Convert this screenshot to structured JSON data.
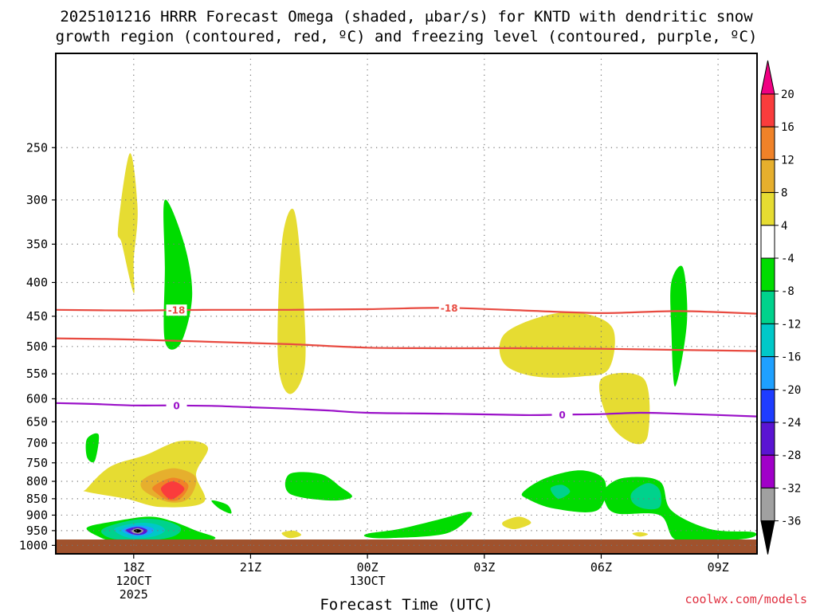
{
  "chart_data": {
    "type": "time-height cross section",
    "title_line1": "2025101216 HRRR Forecast Omega (shaded, μbar/s) for KNTD with dendritic snow",
    "title_line2": "growth region (contoured, red, ºC) and freezing level (contoured, purple, ºC)",
    "xlabel": "Forecast Time (UTC)",
    "credit": "coolwx.com/models",
    "y_axis": {
      "unit": "hPa",
      "reversed": true,
      "range": [
        1030,
        180
      ],
      "ticks": [
        250,
        300,
        350,
        400,
        450,
        500,
        550,
        600,
        650,
        700,
        750,
        800,
        850,
        900,
        950,
        1000
      ]
    },
    "x_axis": {
      "unit": "hours since 12Z 12 Oct 2025",
      "range": [
        4,
        22
      ],
      "ticks": [
        {
          "h": 6,
          "lines": [
            "18Z",
            "12OCT",
            "2025"
          ]
        },
        {
          "h": 9,
          "lines": [
            "21Z"
          ]
        },
        {
          "h": 12,
          "lines": [
            "00Z",
            "13OCT"
          ]
        },
        {
          "h": 15,
          "lines": [
            "03Z"
          ]
        },
        {
          "h": 18,
          "lines": [
            "06Z"
          ]
        },
        {
          "h": 21,
          "lines": [
            "09Z"
          ]
        }
      ]
    },
    "colorbar": {
      "levels": [
        -36,
        -32,
        -28,
        -24,
        -20,
        -16,
        -12,
        -8,
        -4,
        4,
        8,
        12,
        16,
        20
      ],
      "labels": [
        "20",
        "16",
        "12",
        "8",
        "4",
        "-4",
        "-8",
        "-12",
        "-16",
        "-20",
        "-24",
        "-28",
        "-32",
        "-36"
      ],
      "colors": [
        "#000000",
        "#a0a0a0",
        "#a000c8",
        "#5a14d2",
        "#1e3cff",
        "#1ea0ff",
        "#00c8c8",
        "#00d28c",
        "#00dc00",
        "#ffffff",
        "#e6dc32",
        "#e6af2d",
        "#f08228",
        "#fa3c3c",
        "#f00082"
      ],
      "color_meaning": [
        "< -36",
        "-36..-32",
        "-32..-28",
        "-28..-24",
        "-24..-20",
        "-20..-16",
        "-16..-12",
        "-12..-8",
        "-8..-4",
        "-4..4",
        "4..8",
        "8..12",
        "12..16",
        "16..20",
        "> 20"
      ]
    },
    "contours": [
      {
        "name": "-18 C isotherm (upper dendritic bound)",
        "color": "#e84a40",
        "value": "-18",
        "label": "-18",
        "label_positions_h": [
          7.1,
          14.1
        ],
        "points": [
          [
            4,
            440
          ],
          [
            6,
            441
          ],
          [
            8,
            440
          ],
          [
            10,
            440
          ],
          [
            12,
            439
          ],
          [
            14,
            437
          ],
          [
            16,
            441
          ],
          [
            18,
            445
          ],
          [
            20,
            442
          ],
          [
            22,
            446
          ]
        ]
      },
      {
        "name": "-12 C isotherm (lower dendritic bound)",
        "color": "#e84a40",
        "value": "-12",
        "label": "",
        "points": [
          [
            4,
            486
          ],
          [
            6,
            488
          ],
          [
            8,
            492
          ],
          [
            10,
            496
          ],
          [
            12,
            502
          ],
          [
            14,
            503
          ],
          [
            16,
            503
          ],
          [
            18,
            504
          ],
          [
            20,
            506
          ],
          [
            22,
            508
          ]
        ]
      },
      {
        "name": "freezing level",
        "color": "#9a10c8",
        "value": "0",
        "label": "0",
        "label_positions_h": [
          7.1,
          17.0
        ],
        "points": [
          [
            4,
            609
          ],
          [
            5,
            611
          ],
          [
            6,
            614
          ],
          [
            7,
            614
          ],
          [
            8,
            615
          ],
          [
            9,
            618
          ],
          [
            10,
            621
          ],
          [
            11,
            625
          ],
          [
            12,
            630
          ],
          [
            14,
            632
          ],
          [
            16,
            635
          ],
          [
            17,
            634
          ],
          [
            18,
            633
          ],
          [
            19,
            630
          ],
          [
            20,
            632
          ],
          [
            22,
            638
          ]
        ]
      }
    ],
    "omega_regions": [
      {
        "level": "4..8",
        "points": [
          [
            5.6,
            330
          ],
          [
            5.9,
            255
          ],
          [
            6.1,
            310
          ],
          [
            6.0,
            370
          ],
          [
            6.0,
            415
          ],
          [
            5.7,
            350
          ]
        ]
      },
      {
        "level": "-8..-4",
        "points": [
          [
            6.8,
            300
          ],
          [
            7.3,
            350
          ],
          [
            7.5,
            420
          ],
          [
            7.2,
            495
          ],
          [
            6.8,
            490
          ],
          [
            6.8,
            380
          ]
        ]
      },
      {
        "level": "4..8",
        "points": [
          [
            9.8,
            350
          ],
          [
            10.1,
            310
          ],
          [
            10.3,
            380
          ],
          [
            10.4,
            530
          ],
          [
            10.0,
            590
          ],
          [
            9.7,
            520
          ]
        ]
      },
      {
        "level": "4..8",
        "points": [
          [
            15.5,
            480
          ],
          [
            16.5,
            450
          ],
          [
            17.5,
            445
          ],
          [
            18.3,
            470
          ],
          [
            18.2,
            540
          ],
          [
            17.5,
            555
          ],
          [
            16.3,
            555
          ],
          [
            15.5,
            530
          ]
        ]
      },
      {
        "level": "4..8",
        "points": [
          [
            18.0,
            560
          ],
          [
            19.1,
            560
          ],
          [
            19.2,
            680
          ],
          [
            18.8,
            700
          ],
          [
            18.2,
            650
          ]
        ]
      },
      {
        "level": "-8..-4",
        "points": [
          [
            19.8,
            400
          ],
          [
            20.1,
            380
          ],
          [
            20.2,
            460
          ],
          [
            19.9,
            575
          ],
          [
            19.8,
            470
          ]
        ]
      },
      {
        "level": "-8..-4",
        "points": [
          [
            4.8,
            690
          ],
          [
            5.1,
            680
          ],
          [
            5.0,
            745
          ],
          [
            4.8,
            735
          ]
        ]
      },
      {
        "level": "4..8",
        "points": [
          [
            4.8,
            820
          ],
          [
            5.4,
            760
          ],
          [
            6.3,
            730
          ],
          [
            7.2,
            695
          ],
          [
            7.9,
            710
          ],
          [
            7.6,
            780
          ],
          [
            7.8,
            860
          ],
          [
            6.7,
            875
          ],
          [
            5.8,
            850
          ],
          [
            4.8,
            830
          ]
        ]
      },
      {
        "level": "8..12",
        "points": [
          [
            6.2,
            800
          ],
          [
            6.6,
            775
          ],
          [
            7.1,
            765
          ],
          [
            7.6,
            790
          ],
          [
            7.4,
            850
          ],
          [
            6.9,
            860
          ],
          [
            6.3,
            830
          ]
        ]
      },
      {
        "level": "12..16",
        "points": [
          [
            6.5,
            815
          ],
          [
            7.0,
            790
          ],
          [
            7.4,
            810
          ],
          [
            7.2,
            850
          ],
          [
            6.9,
            855
          ],
          [
            6.6,
            835
          ]
        ]
      },
      {
        "level": "16..20",
        "points": [
          [
            6.7,
            820
          ],
          [
            7.0,
            800
          ],
          [
            7.3,
            820
          ],
          [
            7.1,
            845
          ],
          [
            6.9,
            850
          ]
        ]
      },
      {
        "level": "-8..-4",
        "points": [
          [
            4.8,
            940
          ],
          [
            5.5,
            920
          ],
          [
            6.4,
            905
          ],
          [
            7.0,
            920
          ],
          [
            7.6,
            950
          ],
          [
            8.1,
            975
          ],
          [
            7.5,
            990
          ],
          [
            6.5,
            990
          ],
          [
            5.5,
            985
          ],
          [
            5.1,
            970
          ]
        ]
      },
      {
        "level": "-12..-8",
        "points": [
          [
            5.2,
            945
          ],
          [
            6.0,
            915
          ],
          [
            6.7,
            915
          ],
          [
            7.2,
            940
          ],
          [
            7.0,
            970
          ],
          [
            6.2,
            985
          ],
          [
            5.4,
            975
          ]
        ]
      },
      {
        "level": "-16..-12",
        "points": [
          [
            5.5,
            945
          ],
          [
            6.1,
            925
          ],
          [
            6.6,
            930
          ],
          [
            6.8,
            950
          ],
          [
            6.5,
            970
          ],
          [
            5.9,
            975
          ]
        ]
      },
      {
        "level": "-20..-16",
        "points": [
          [
            5.7,
            948
          ],
          [
            6.1,
            933
          ],
          [
            6.5,
            943
          ],
          [
            6.4,
            962
          ],
          [
            6.0,
            968
          ]
        ]
      },
      {
        "level": "-28..-24",
        "points": [
          [
            5.8,
            948
          ],
          [
            6.1,
            938
          ],
          [
            6.35,
            948
          ],
          [
            6.25,
            962
          ],
          [
            6.0,
            963
          ]
        ]
      },
      {
        "level": "-36..-32",
        "points": [
          [
            5.95,
            950
          ],
          [
            6.1,
            942
          ],
          [
            6.25,
            950
          ],
          [
            6.15,
            960
          ],
          [
            6.0,
            958
          ]
        ]
      },
      {
        "level": "< -36",
        "points": [
          [
            6.0,
            950
          ],
          [
            6.1,
            945
          ],
          [
            6.2,
            951
          ],
          [
            6.1,
            957
          ]
        ]
      },
      {
        "level": "-8..-4",
        "points": [
          [
            8.0,
            855
          ],
          [
            8.4,
            868
          ],
          [
            8.5,
            895
          ],
          [
            8.2,
            880
          ]
        ]
      },
      {
        "level": "4..8",
        "points": [
          [
            9.8,
            958
          ],
          [
            10.1,
            950
          ],
          [
            10.3,
            965
          ],
          [
            10.0,
            975
          ]
        ]
      },
      {
        "level": "-8..-4",
        "points": [
          [
            10.0,
            780
          ],
          [
            10.8,
            780
          ],
          [
            11.3,
            815
          ],
          [
            11.6,
            845
          ],
          [
            11.0,
            855
          ],
          [
            10.0,
            835
          ]
        ]
      },
      {
        "level": "-8..-4",
        "points": [
          [
            12.0,
            960
          ],
          [
            12.8,
            945
          ],
          [
            13.8,
            915
          ],
          [
            14.6,
            890
          ],
          [
            14.6,
            910
          ],
          [
            14.0,
            960
          ],
          [
            12.6,
            975
          ],
          [
            12.0,
            972
          ]
        ]
      },
      {
        "level": "4..8",
        "points": [
          [
            15.5,
            920
          ],
          [
            15.9,
            905
          ],
          [
            16.2,
            925
          ],
          [
            15.8,
            945
          ],
          [
            15.5,
            935
          ]
        ]
      },
      {
        "level": "-8..-4",
        "points": [
          [
            16.0,
            830
          ],
          [
            16.6,
            790
          ],
          [
            17.5,
            770
          ],
          [
            18.1,
            800
          ],
          [
            17.9,
            885
          ],
          [
            16.8,
            880
          ],
          [
            16.1,
            850
          ]
        ]
      },
      {
        "level": "-12..-8",
        "points": [
          [
            16.7,
            820
          ],
          [
            17.0,
            810
          ],
          [
            17.2,
            830
          ],
          [
            16.9,
            850
          ]
        ]
      },
      {
        "level": "-8..-4",
        "points": [
          [
            18.1,
            820
          ],
          [
            18.6,
            790
          ],
          [
            19.5,
            800
          ],
          [
            19.8,
            885
          ],
          [
            20.8,
            945
          ],
          [
            21.9,
            955
          ],
          [
            21.8,
            975
          ],
          [
            20.8,
            985
          ],
          [
            19.9,
            980
          ],
          [
            19.5,
            900
          ],
          [
            18.4,
            895
          ],
          [
            18.1,
            860
          ]
        ]
      },
      {
        "level": "-12..-8",
        "points": [
          [
            18.8,
            830
          ],
          [
            19.2,
            805
          ],
          [
            19.5,
            825
          ],
          [
            19.5,
            875
          ],
          [
            19.1,
            880
          ],
          [
            18.8,
            860
          ]
        ]
      },
      {
        "level": "4..8",
        "points": [
          [
            18.8,
            960
          ],
          [
            19.0,
            955
          ],
          [
            19.2,
            962
          ],
          [
            19.0,
            970
          ]
        ]
      }
    ]
  }
}
